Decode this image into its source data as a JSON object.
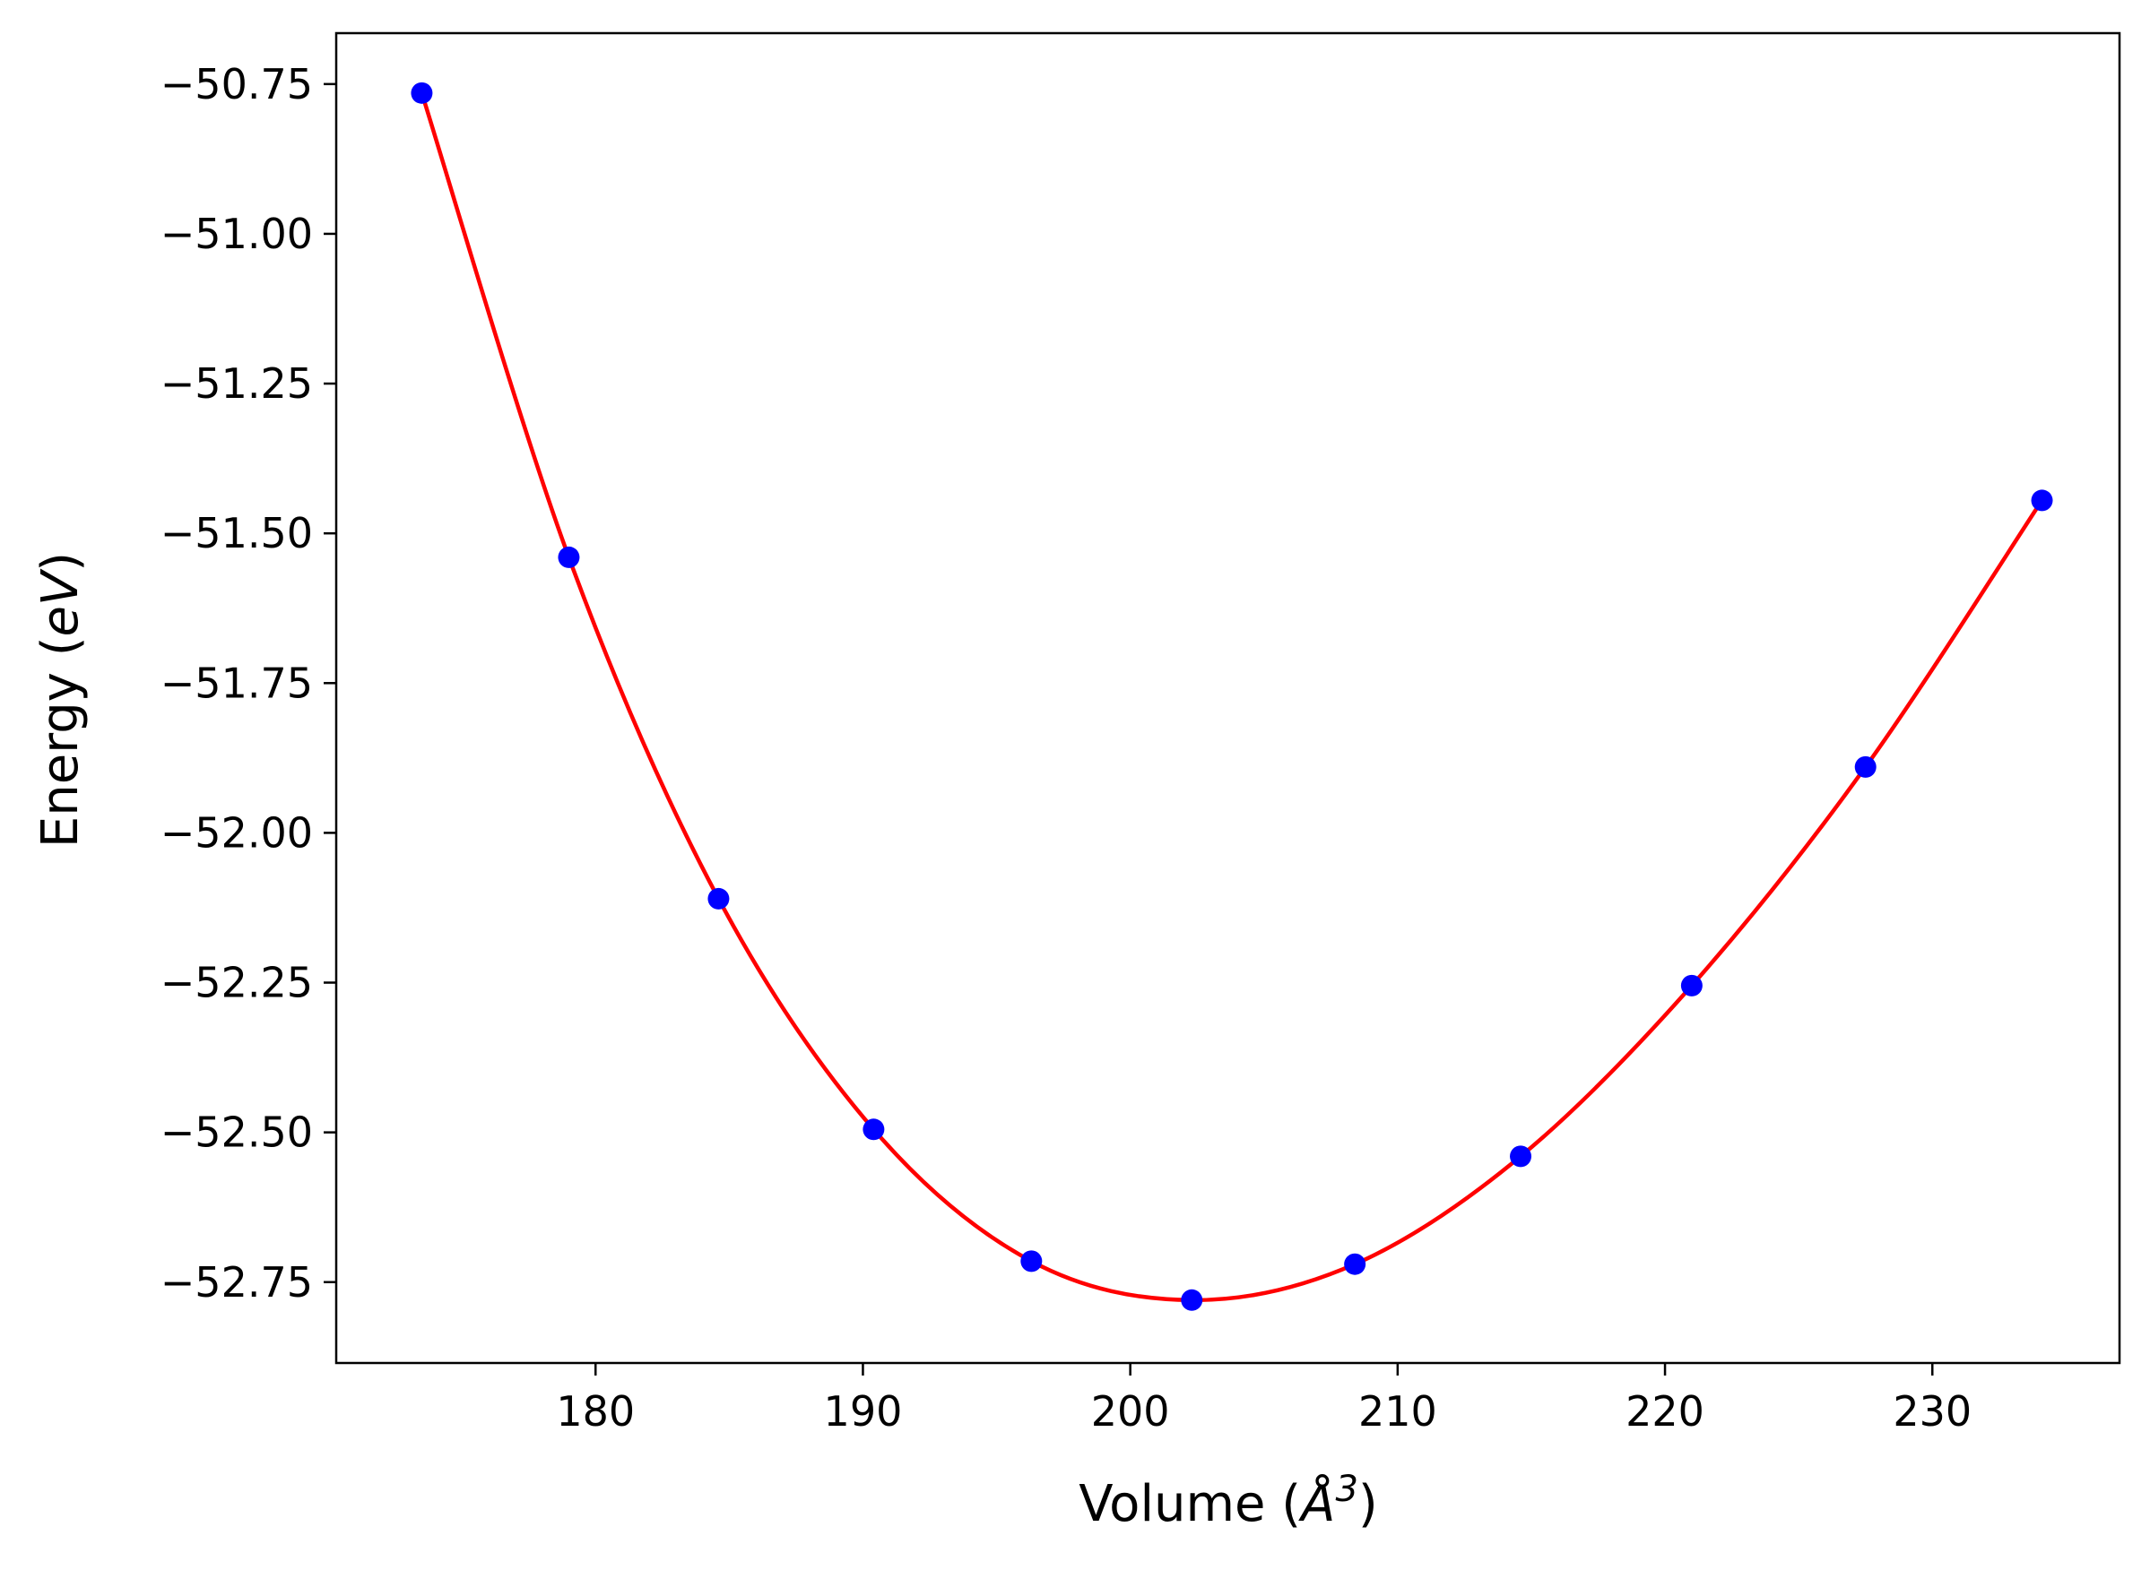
{
  "chart_data": {
    "type": "line",
    "title": "",
    "xlabel": "Volume (",
    "xlabel_symbol": "Å",
    "xlabel_exponent": "3",
    "xlabel_close": ")",
    "ylabel": "Energy (",
    "ylabel_unit": "eV",
    "ylabel_close": ")",
    "xlim": [
      170.3,
      237.0
    ],
    "ylim": [
      -52.885,
      -50.665
    ],
    "xticks": [
      180,
      190,
      200,
      210,
      220,
      230
    ],
    "xtick_labels": [
      "180",
      "190",
      "200",
      "210",
      "220",
      "230"
    ],
    "yticks": [
      -50.75,
      -51.0,
      -51.25,
      -51.5,
      -51.75,
      -52.0,
      -52.25,
      -52.5,
      -52.75
    ],
    "ytick_labels": [
      "−50.75",
      "−51.00",
      "−51.25",
      "−51.50",
      "−51.75",
      "−52.00",
      "−52.25",
      "−52.50",
      "−52.75"
    ],
    "grid": false,
    "series": [
      {
        "kind": "scatter",
        "color": "#0000ff",
        "x": [
          173.5,
          179.0,
          184.6,
          190.4,
          196.3,
          202.3,
          208.4,
          214.6,
          221.0,
          227.5,
          234.1
        ],
        "y": [
          -50.765,
          -51.54,
          -52.11,
          -52.495,
          -52.715,
          -52.78,
          -52.72,
          -52.54,
          -52.255,
          -51.89,
          -51.445
        ]
      },
      {
        "kind": "fit",
        "color": "#ff0000",
        "x": [
          173.5,
          179.0,
          184.6,
          190.4,
          196.3,
          202.3,
          208.4,
          214.6,
          221.0,
          227.5,
          234.1
        ],
        "y": [
          -50.765,
          -51.54,
          -52.11,
          -52.495,
          -52.715,
          -52.78,
          -52.72,
          -52.54,
          -52.255,
          -51.89,
          -51.445
        ]
      }
    ]
  }
}
